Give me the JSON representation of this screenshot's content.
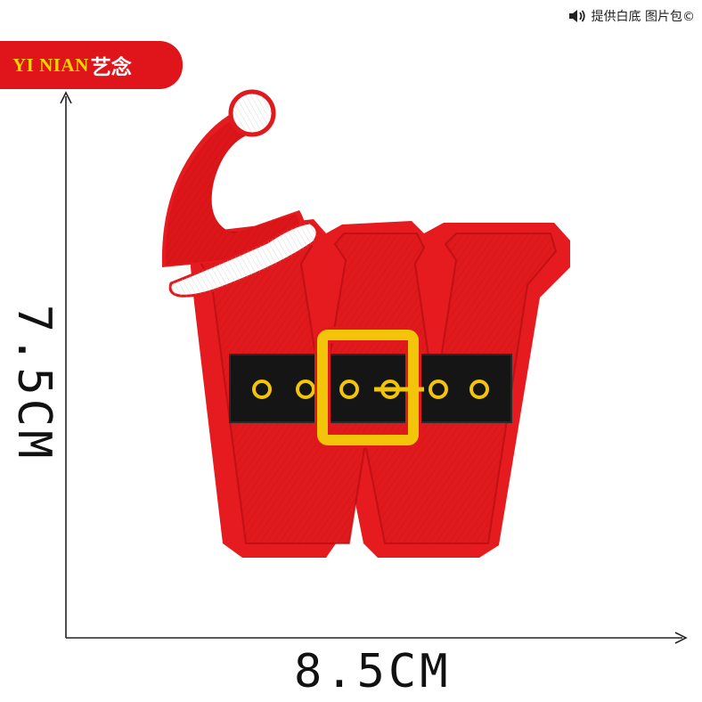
{
  "brand": {
    "name_en": "YI NIAN",
    "name_cn": "艺念",
    "badge_color": "#e0141b",
    "name_en_color": "#f5d400"
  },
  "watermark": {
    "icon": "speaker-icon",
    "text": "提供白底 图片包©"
  },
  "dimensions": {
    "height_label": "7.5CM",
    "width_label": "8.5CM"
  },
  "product": {
    "subject": "embroidered-patch-letter-w",
    "colors": {
      "body": "#e0191c",
      "belt": "#151515",
      "buckle": "#f2c40a",
      "pompom": "#ffffff"
    }
  }
}
